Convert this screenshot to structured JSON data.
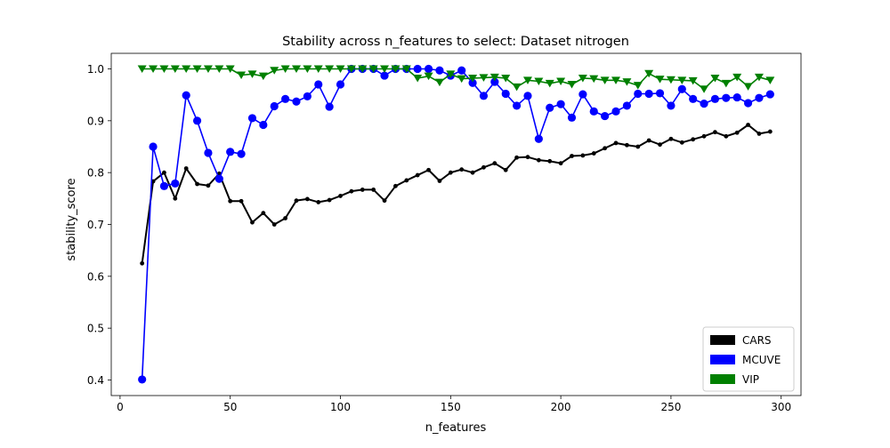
{
  "chart_data": {
    "type": "line",
    "title": "Stability across n_features to select: Dataset nitrogen",
    "xlabel": "n_features",
    "ylabel": "stability_score",
    "xlim": [
      -4,
      309
    ],
    "ylim": [
      0.37,
      1.03
    ],
    "xticks": [
      0,
      50,
      100,
      150,
      200,
      250,
      300
    ],
    "yticks": [
      0.4,
      0.5,
      0.6,
      0.7,
      0.8,
      0.9,
      1.0
    ],
    "xtick_labels": [
      "0",
      "50",
      "100",
      "150",
      "200",
      "250",
      "300"
    ],
    "ytick_labels": [
      "0.4",
      "0.5",
      "0.6",
      "0.7",
      "0.8",
      "0.9",
      "1.0"
    ],
    "grid": false,
    "legend_position": "lower-right",
    "x": [
      10,
      15,
      20,
      25,
      30,
      35,
      40,
      45,
      50,
      55,
      60,
      65,
      70,
      75,
      80,
      85,
      90,
      95,
      100,
      105,
      110,
      115,
      120,
      125,
      130,
      135,
      140,
      145,
      150,
      155,
      160,
      165,
      170,
      175,
      180,
      185,
      190,
      195,
      200,
      205,
      210,
      215,
      220,
      225,
      230,
      235,
      240,
      245,
      250,
      255,
      260,
      265,
      270,
      275,
      280,
      285,
      290,
      295
    ],
    "series": [
      {
        "name": "CARS",
        "color": "#000000",
        "marker": "dot",
        "values": [
          0.625,
          0.783,
          0.8,
          0.75,
          0.808,
          0.778,
          0.775,
          0.798,
          0.745,
          0.745,
          0.704,
          0.722,
          0.7,
          0.712,
          0.746,
          0.749,
          0.743,
          0.747,
          0.755,
          0.764,
          0.767,
          0.767,
          0.746,
          0.774,
          0.785,
          0.795,
          0.805,
          0.784,
          0.8,
          0.806,
          0.8,
          0.81,
          0.818,
          0.805,
          0.829,
          0.83,
          0.824,
          0.822,
          0.818,
          0.832,
          0.833,
          0.837,
          0.847,
          0.857,
          0.853,
          0.85,
          0.862,
          0.854,
          0.865,
          0.858,
          0.864,
          0.87,
          0.878,
          0.87,
          0.877,
          0.892,
          0.875,
          0.879
        ]
      },
      {
        "name": "MCUVE",
        "color": "#0000ff",
        "marker": "circle",
        "values": [
          0.401,
          0.85,
          0.774,
          0.779,
          0.949,
          0.9,
          0.838,
          0.788,
          0.84,
          0.836,
          0.905,
          0.892,
          0.928,
          0.942,
          0.937,
          0.947,
          0.97,
          0.927,
          0.97,
          1.0,
          1.0,
          1.0,
          0.987,
          1.0,
          1.0,
          1.0,
          1.0,
          0.997,
          0.987,
          0.997,
          0.973,
          0.948,
          0.975,
          0.952,
          0.929,
          0.948,
          0.865,
          0.925,
          0.932,
          0.906,
          0.951,
          0.918,
          0.909,
          0.918,
          0.929,
          0.952,
          0.952,
          0.953,
          0.929,
          0.961,
          0.942,
          0.933,
          0.942,
          0.944,
          0.945,
          0.934,
          0.944,
          0.951
        ]
      },
      {
        "name": "VIP",
        "color": "#008000",
        "marker": "triangle-down",
        "values": [
          1.0,
          1.0,
          1.0,
          1.0,
          1.0,
          1.0,
          1.0,
          1.0,
          1.0,
          0.988,
          0.99,
          0.986,
          0.997,
          1.0,
          1.0,
          1.0,
          1.0,
          1.0,
          1.0,
          1.0,
          1.0,
          1.0,
          1.0,
          1.0,
          1.0,
          0.982,
          0.986,
          0.974,
          0.99,
          0.981,
          0.982,
          0.983,
          0.984,
          0.982,
          0.965,
          0.978,
          0.976,
          0.972,
          0.976,
          0.97,
          0.982,
          0.981,
          0.978,
          0.978,
          0.975,
          0.968,
          0.991,
          0.98,
          0.979,
          0.978,
          0.977,
          0.961,
          0.982,
          0.972,
          0.984,
          0.966,
          0.984,
          0.978
        ]
      }
    ]
  }
}
